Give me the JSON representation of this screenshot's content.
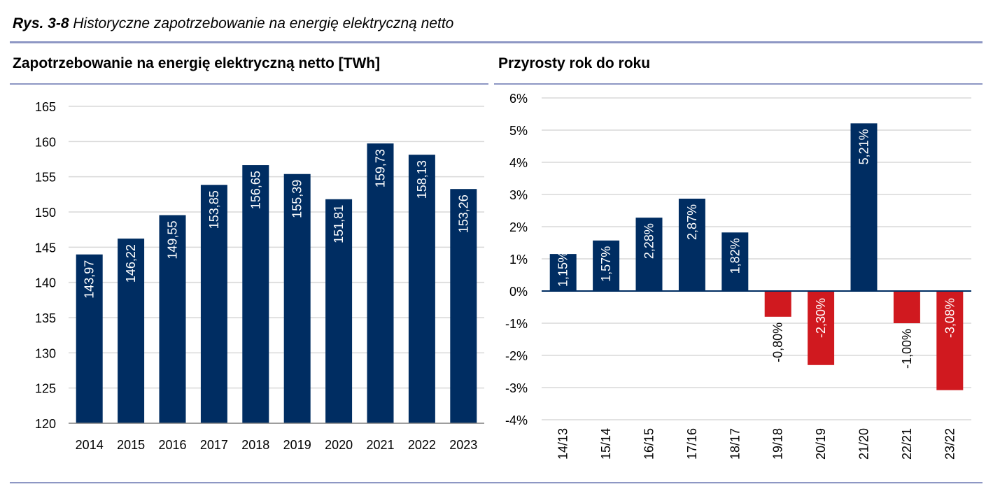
{
  "figure": {
    "label": "Rys. 3-8",
    "caption": "Historyczne zapotrzebowanie na energię elektryczną netto"
  },
  "colors": {
    "bar_positive": "#002d62",
    "bar_negative": "#d0191f",
    "grid": "#d9d9d9",
    "rule": "#8e97c4",
    "axis": "#7f7f7f"
  },
  "chart_data": [
    {
      "type": "bar",
      "title": "Zapotrzebowanie na energię elektryczną netto [TWh]",
      "xlabel": "",
      "ylabel": "",
      "categories": [
        "2014",
        "2015",
        "2016",
        "2017",
        "2018",
        "2019",
        "2020",
        "2021",
        "2022",
        "2023"
      ],
      "values": [
        143.97,
        146.22,
        149.55,
        153.85,
        156.65,
        155.39,
        151.81,
        159.73,
        158.13,
        153.26
      ],
      "value_labels": [
        "143,97",
        "146,22",
        "149,55",
        "153,85",
        "156,65",
        "155,39",
        "151,81",
        "159,73",
        "158,13",
        "153,26"
      ],
      "ylim": [
        120,
        165
      ],
      "yticks": [
        120,
        125,
        130,
        135,
        140,
        145,
        150,
        155,
        160,
        165
      ],
      "ytick_labels": [
        "120",
        "125",
        "130",
        "135",
        "140",
        "145",
        "150",
        "155",
        "160",
        "165"
      ],
      "grid": true
    },
    {
      "type": "bar",
      "title": "Przyrosty rok do roku",
      "xlabel": "",
      "ylabel": "",
      "categories": [
        "14/13",
        "15/14",
        "16/15",
        "17/16",
        "18/17",
        "19/18",
        "20/19",
        "21/20",
        "22/21",
        "23/22"
      ],
      "values": [
        1.15,
        1.57,
        2.28,
        2.87,
        1.82,
        -0.8,
        -2.3,
        5.21,
        -1.0,
        -3.08
      ],
      "value_labels": [
        "1,15%",
        "1,57%",
        "2,28%",
        "2,87%",
        "1,82%",
        "-0,80%",
        "-2,30%",
        "5,21%",
        "-1,00%",
        "-3,08%"
      ],
      "ylim": [
        -4,
        6
      ],
      "yticks": [
        -4,
        -3,
        -2,
        -1,
        0,
        1,
        2,
        3,
        4,
        5,
        6
      ],
      "ytick_labels": [
        "-4%",
        "-3%",
        "-2%",
        "-1%",
        "0%",
        "1%",
        "2%",
        "3%",
        "4%",
        "5%",
        "6%"
      ],
      "grid": true
    }
  ]
}
